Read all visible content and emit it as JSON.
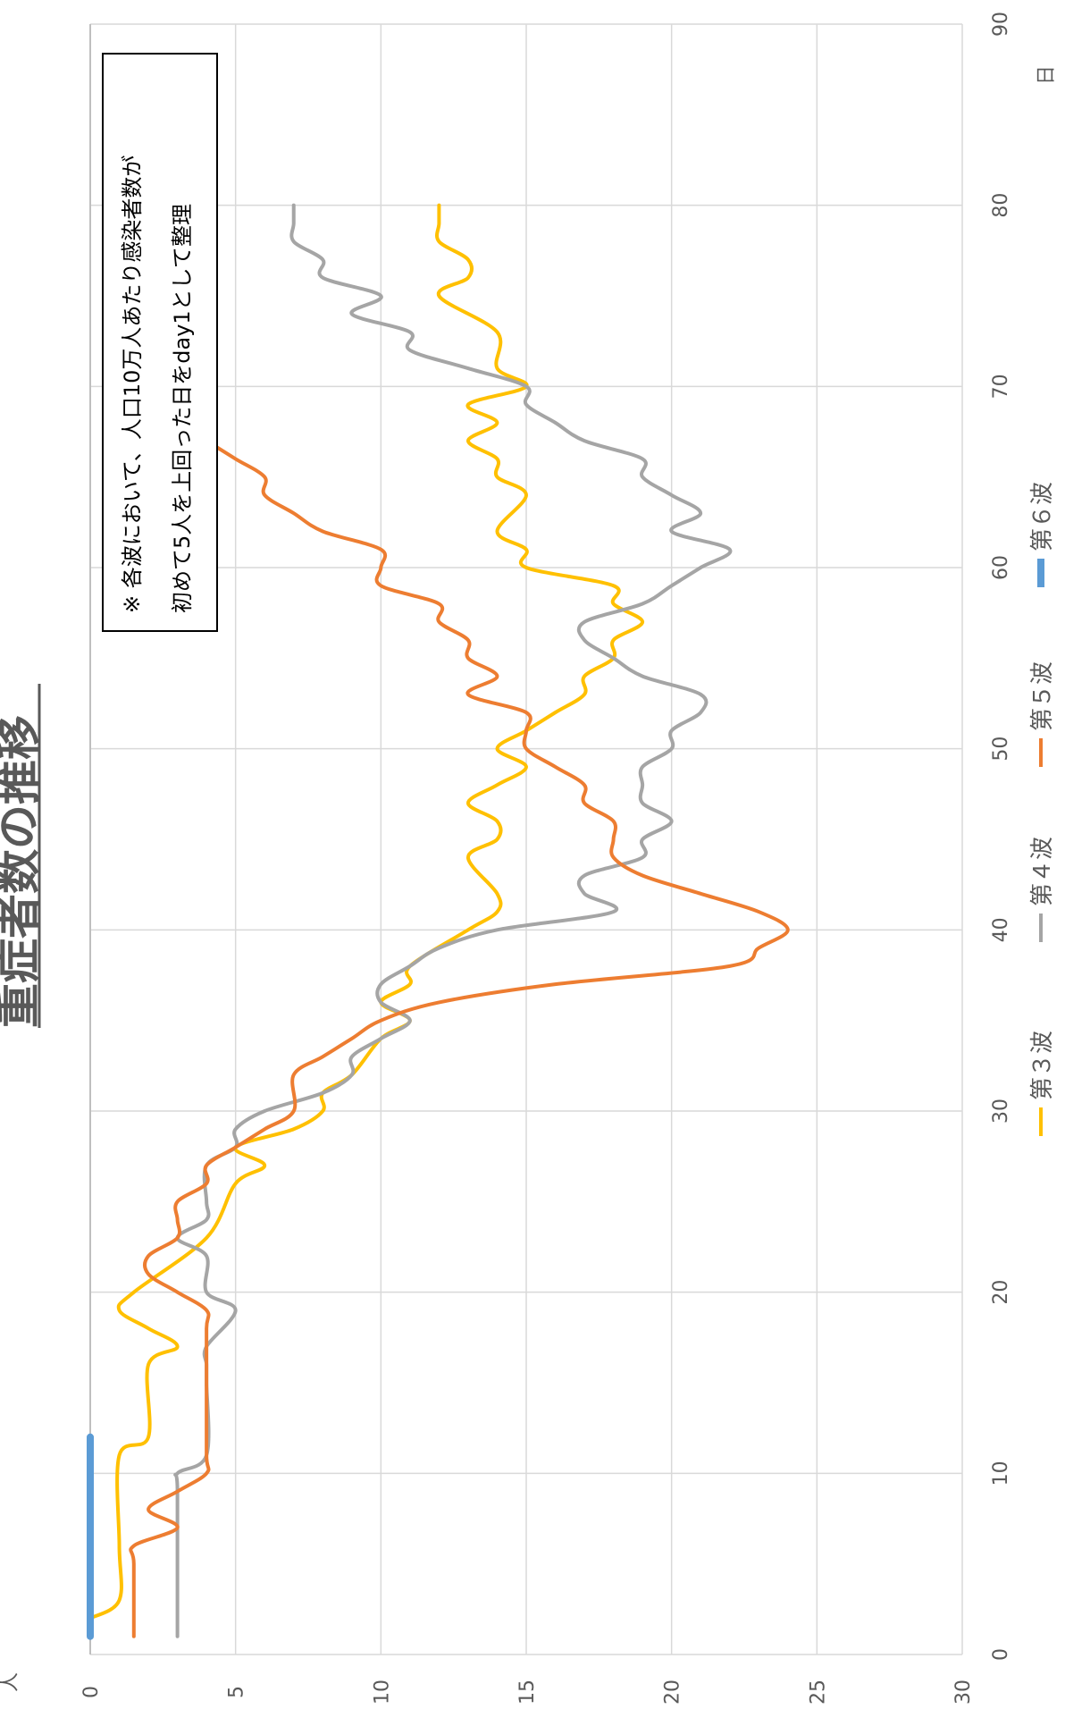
{
  "chart_data": {
    "type": "line",
    "title": "重症者数の推移",
    "xlabel": "日",
    "ylabel": "人",
    "xlim": [
      0,
      90
    ],
    "ylim": [
      0,
      30
    ],
    "x_ticks": [
      "0",
      "10",
      "20",
      "30",
      "40",
      "50",
      "60",
      "70",
      "80",
      "90"
    ],
    "y_ticks": [
      "0",
      "5",
      "10",
      "15",
      "20",
      "25",
      "30"
    ],
    "grid": true,
    "legend_position": "bottom",
    "note_line1": "※ 各波において、人口10万人あたり感染者数が",
    "note_line2": "初めて5人を上回った日をday1として整理",
    "series": [
      {
        "name": "第３波",
        "color": "#FFC000",
        "stroke": 4,
        "points": [
          [
            2,
            0
          ],
          [
            3,
            1
          ],
          [
            6,
            1
          ],
          [
            11,
            1
          ],
          [
            12,
            2
          ],
          [
            16,
            2
          ],
          [
            17,
            3
          ],
          [
            18,
            2
          ],
          [
            19,
            1
          ],
          [
            20,
            1.5
          ],
          [
            23,
            4
          ],
          [
            26,
            5
          ],
          [
            27,
            6
          ],
          [
            28,
            5
          ],
          [
            29,
            7
          ],
          [
            30,
            8
          ],
          [
            31,
            8
          ],
          [
            32,
            9
          ],
          [
            34,
            10
          ],
          [
            35,
            11
          ],
          [
            36,
            10
          ],
          [
            37,
            11
          ],
          [
            38,
            11
          ],
          [
            40,
            13
          ],
          [
            41,
            14
          ],
          [
            42,
            14
          ],
          [
            44,
            13
          ],
          [
            45,
            14
          ],
          [
            46,
            14
          ],
          [
            47,
            13
          ],
          [
            48,
            14
          ],
          [
            49,
            15
          ],
          [
            50,
            14
          ],
          [
            51,
            15
          ],
          [
            52,
            16
          ],
          [
            53,
            17
          ],
          [
            54,
            17
          ],
          [
            55,
            18
          ],
          [
            56,
            18
          ],
          [
            57,
            19
          ],
          [
            58,
            18
          ],
          [
            59,
            18
          ],
          [
            60,
            15
          ],
          [
            61,
            15
          ],
          [
            62,
            14
          ],
          [
            64,
            15
          ],
          [
            65,
            14
          ],
          [
            66,
            14
          ],
          [
            67,
            13
          ],
          [
            68,
            14
          ],
          [
            69,
            13
          ],
          [
            70,
            15
          ],
          [
            71,
            14
          ],
          [
            73,
            14
          ],
          [
            75,
            12
          ],
          [
            76,
            13
          ],
          [
            77,
            13
          ],
          [
            78,
            12
          ],
          [
            79,
            12
          ],
          [
            80,
            12
          ]
        ]
      },
      {
        "name": "第４波",
        "color": "#A5A5A5",
        "stroke": 4,
        "points": [
          [
            1,
            3
          ],
          [
            9,
            3
          ],
          [
            10,
            3
          ],
          [
            11,
            4
          ],
          [
            15,
            4
          ],
          [
            16,
            4
          ],
          [
            17,
            4
          ],
          [
            19,
            5
          ],
          [
            20,
            4
          ],
          [
            22,
            4
          ],
          [
            23,
            3
          ],
          [
            24,
            4
          ],
          [
            25,
            4
          ],
          [
            27,
            4
          ],
          [
            28,
            5
          ],
          [
            29,
            5
          ],
          [
            30,
            6
          ],
          [
            31,
            8
          ],
          [
            32,
            9
          ],
          [
            33,
            9
          ],
          [
            34,
            10
          ],
          [
            35,
            11
          ],
          [
            36,
            10
          ],
          [
            37,
            10
          ],
          [
            38,
            11
          ],
          [
            39,
            12
          ],
          [
            40,
            14
          ],
          [
            41,
            18
          ],
          [
            42,
            17
          ],
          [
            43,
            17
          ],
          [
            44,
            19
          ],
          [
            45,
            19
          ],
          [
            46,
            20
          ],
          [
            47,
            19
          ],
          [
            48,
            19
          ],
          [
            49,
            19
          ],
          [
            50,
            20
          ],
          [
            51,
            20
          ],
          [
            52,
            21
          ],
          [
            53,
            21
          ],
          [
            54,
            19
          ],
          [
            55,
            18
          ],
          [
            56,
            17
          ],
          [
            57,
            17
          ],
          [
            58,
            19
          ],
          [
            59,
            20
          ],
          [
            60,
            21
          ],
          [
            61,
            22
          ],
          [
            62,
            20
          ],
          [
            63,
            21
          ],
          [
            64,
            20
          ],
          [
            65,
            19
          ],
          [
            66,
            19
          ],
          [
            67,
            17
          ],
          [
            68,
            16
          ],
          [
            69,
            15
          ],
          [
            70,
            15
          ],
          [
            71,
            13
          ],
          [
            72,
            11
          ],
          [
            73,
            11
          ],
          [
            74,
            9
          ],
          [
            75,
            10
          ],
          [
            76,
            8
          ],
          [
            77,
            8
          ],
          [
            78,
            7
          ],
          [
            79,
            7
          ],
          [
            80,
            7
          ]
        ]
      },
      {
        "name": "第５波",
        "color": "#ED7D31",
        "stroke": 4,
        "points": [
          [
            1,
            1.5
          ],
          [
            5,
            1.5
          ],
          [
            6,
            1.5
          ],
          [
            7,
            3
          ],
          [
            8,
            2
          ],
          [
            9,
            3
          ],
          [
            10,
            4
          ],
          [
            11,
            4
          ],
          [
            15,
            4
          ],
          [
            18,
            4
          ],
          [
            19,
            4
          ],
          [
            20,
            3
          ],
          [
            21,
            2
          ],
          [
            22,
            2
          ],
          [
            23,
            3
          ],
          [
            24,
            3
          ],
          [
            25,
            3
          ],
          [
            26,
            4
          ],
          [
            27,
            4
          ],
          [
            28,
            5
          ],
          [
            29,
            6
          ],
          [
            30,
            7
          ],
          [
            32,
            7
          ],
          [
            33,
            8
          ],
          [
            34,
            9
          ],
          [
            35,
            10
          ],
          [
            36,
            12
          ],
          [
            37,
            16
          ],
          [
            38,
            22
          ],
          [
            39,
            23
          ],
          [
            40,
            24
          ],
          [
            41,
            23
          ],
          [
            42,
            21
          ],
          [
            43,
            19
          ],
          [
            44,
            18
          ],
          [
            45,
            18
          ],
          [
            46,
            18
          ],
          [
            47,
            17
          ],
          [
            48,
            17
          ],
          [
            49,
            16
          ],
          [
            50,
            15
          ],
          [
            51,
            15
          ],
          [
            52,
            15
          ],
          [
            53,
            13
          ],
          [
            54,
            14
          ],
          [
            55,
            13
          ],
          [
            56,
            13
          ],
          [
            57,
            12
          ],
          [
            58,
            12
          ],
          [
            59,
            10
          ],
          [
            60,
            10
          ],
          [
            61,
            10
          ],
          [
            62,
            8
          ],
          [
            63,
            7
          ],
          [
            64,
            6
          ],
          [
            65,
            6
          ],
          [
            66,
            5
          ],
          [
            67,
            4
          ],
          [
            68,
            3
          ],
          [
            69,
            3
          ],
          [
            70,
            2
          ],
          [
            71,
            2
          ],
          [
            72,
            2
          ],
          [
            73,
            2
          ],
          [
            74,
            2
          ],
          [
            75,
            1
          ],
          [
            76,
            2
          ],
          [
            77,
            1
          ],
          [
            78,
            2
          ],
          [
            79,
            2
          ],
          [
            80,
            2
          ]
        ]
      },
      {
        "name": "第６波",
        "color": "#5B9BD5",
        "stroke": 8,
        "points": [
          [
            1,
            0
          ],
          [
            12,
            0
          ]
        ]
      }
    ]
  }
}
